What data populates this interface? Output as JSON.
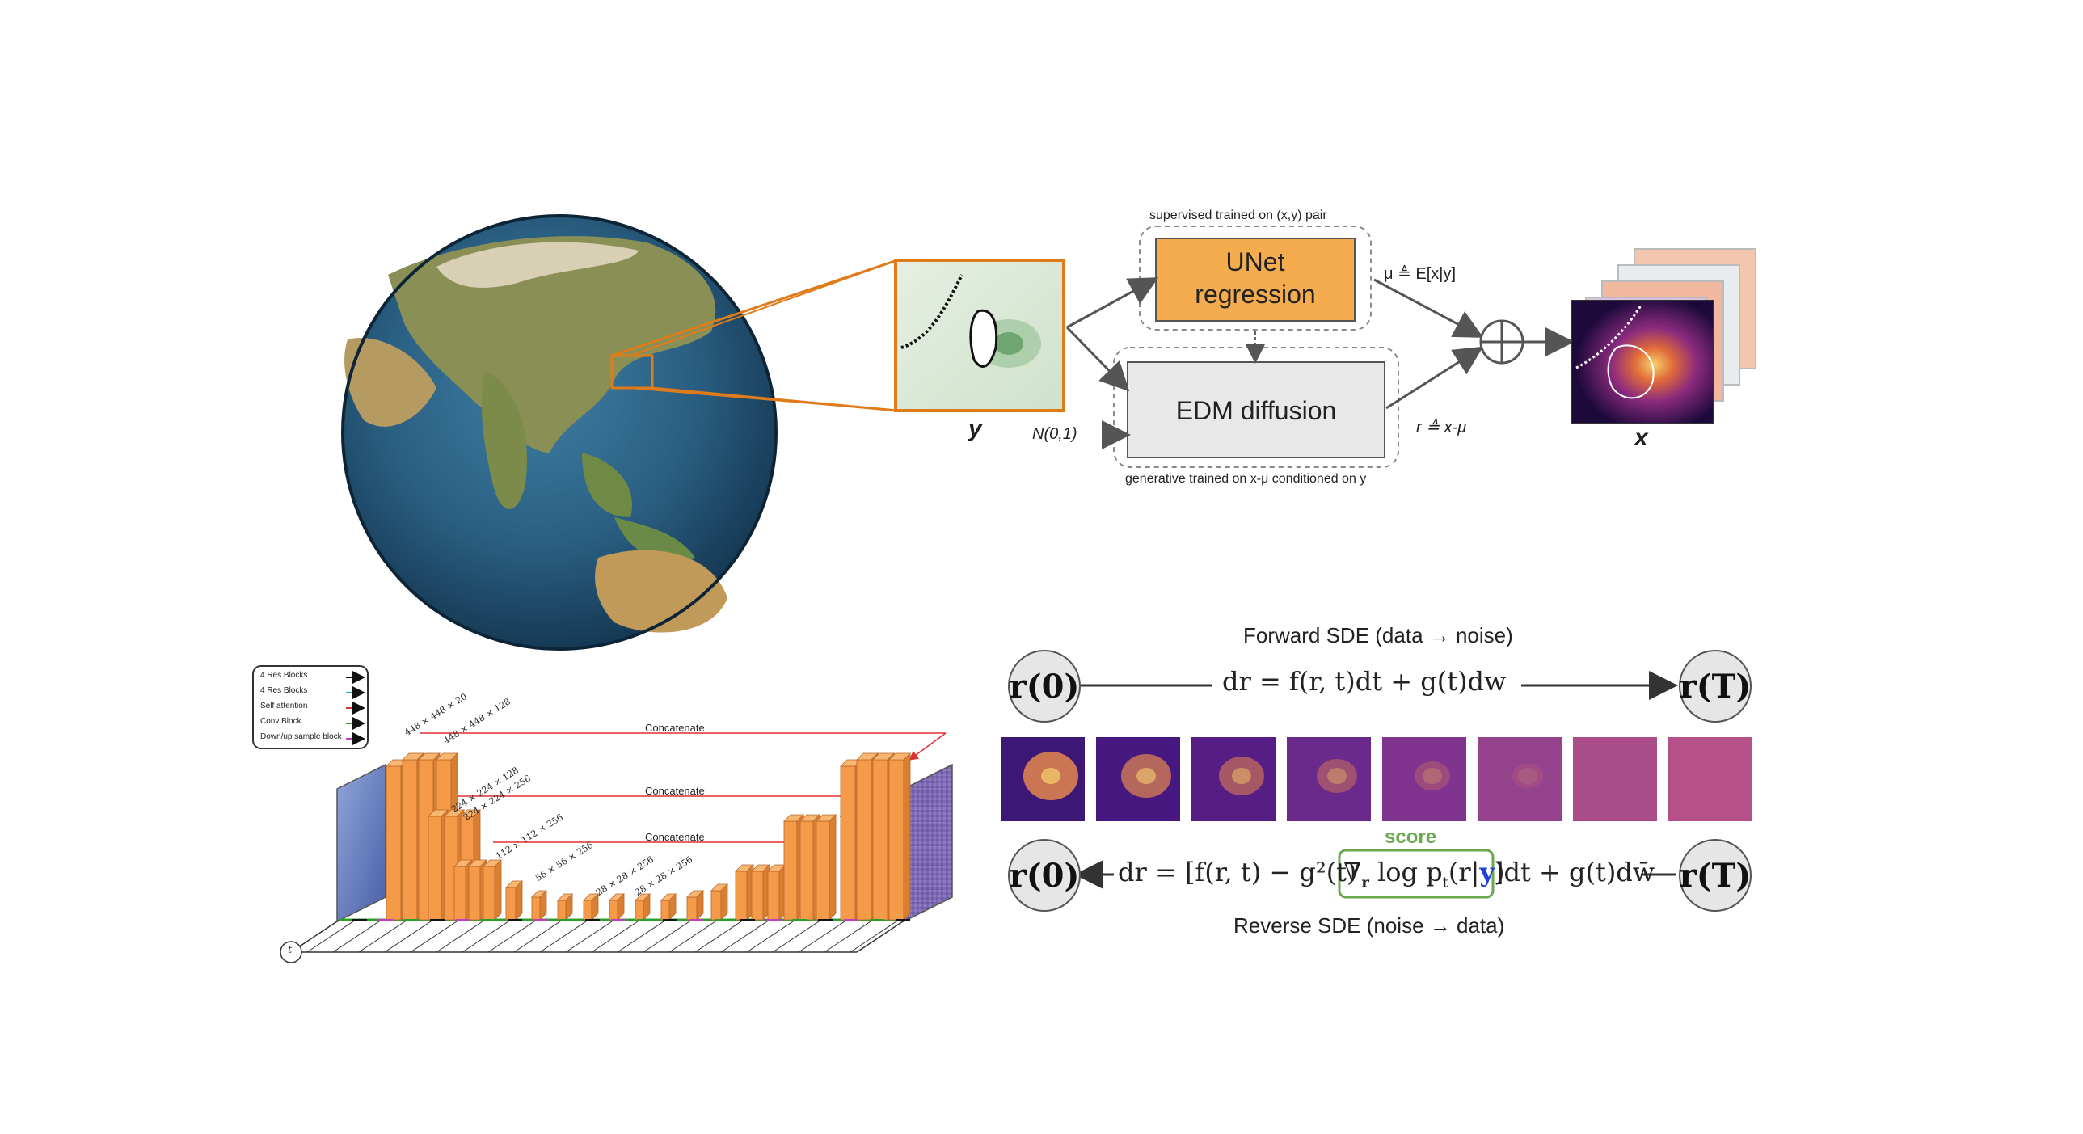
{
  "pipeline": {
    "supervised_caption": "supervised trained on (x,y) pair",
    "unet_line1": "UNet",
    "unet_line2": "regression",
    "edm_label": "EDM diffusion",
    "generative_caption": "generative trained on x-μ conditioned on y",
    "mu_label": "μ ≜ E[x|y]",
    "r_label": "r ≜ x-μ",
    "noise_label": "N(0,1)",
    "input_label": "y",
    "output_label": "x",
    "colors": {
      "unet": "#f4ac4e",
      "edm": "#e8e8e8",
      "highlight": "#e07b1a"
    }
  },
  "unet_arch": {
    "legend": [
      {
        "label": "4 Res Blocks",
        "color": "#111111"
      },
      {
        "label": "4 Res Blocks",
        "color": "#29a3d6"
      },
      {
        "label": "Self attention",
        "color": "#e03030"
      },
      {
        "label": "Conv Block",
        "color": "#2ca02c"
      },
      {
        "label": "Down/up sample block",
        "color": "#c040c0"
      }
    ],
    "concat_label": "Concatenate",
    "dims": [
      "448 × 448 × 20",
      "448 × 448 × 128",
      "224 × 224 × 128",
      "224 × 224 × 256",
      "112 × 112 × 256",
      "56 × 56 × 256",
      "28 × 28 × 256",
      "28 × 28 × 256"
    ],
    "t_label": "t",
    "bar_color": "#f59a48"
  },
  "sde": {
    "forward_title": "Forward SDE (data → noise)",
    "reverse_title": "Reverse SDE (noise → data)",
    "r0": "r(0)",
    "rT": "r(T)",
    "forward_eq": "dr = f(r, t)dt + g(t)dw",
    "reverse_eq_left": "dr = [f(r, t) − g²(t)",
    "score_term_a": "∇",
    "score_term_sub": "r",
    "score_term_b": " log p",
    "score_term_sub2": "t",
    "score_term_c": "(r|",
    "score_term_y": "y",
    "score_term_d": ")",
    "reverse_eq_right": "]dt + g(t)dw̄",
    "score_label": "score",
    "score_color": "#6aa84f",
    "y_color": "#1f3fd6"
  }
}
